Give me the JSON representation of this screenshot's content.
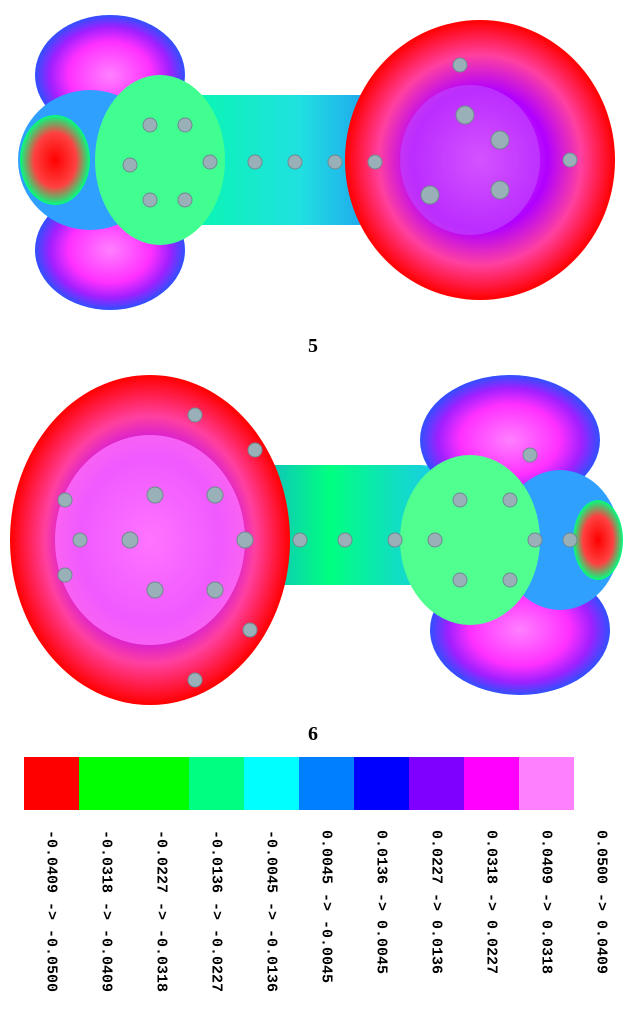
{
  "figure": {
    "panels": [
      {
        "label": "5"
      },
      {
        "label": "6"
      }
    ],
    "legend": [
      {
        "color": "#ff0000",
        "label": "-0.0409 -> -0.0500"
      },
      {
        "color": "#00ff00",
        "label": "-0.0318 -> -0.0409"
      },
      {
        "color": "#00ff00",
        "label": "-0.0227 -> -0.0318"
      },
      {
        "color": "#00ff80",
        "label": "-0.0136 -> -0.0227"
      },
      {
        "color": "#00ffff",
        "label": "-0.0045 -> -0.0136"
      },
      {
        "color": "#0080ff",
        "label": "0.0045 -> -0.0045"
      },
      {
        "color": "#0000ff",
        "label": "0.0136 -> 0.0045"
      },
      {
        "color": "#8000ff",
        "label": "0.0227 -> 0.0136"
      },
      {
        "color": "#ff00ff",
        "label": "0.0318 -> 0.0227"
      },
      {
        "color": "#ff80ff",
        "label": "0.0409 -> 0.0318"
      },
      {
        "color": "#ffffff",
        "label": "0.0500 -> 0.0409"
      }
    ]
  }
}
